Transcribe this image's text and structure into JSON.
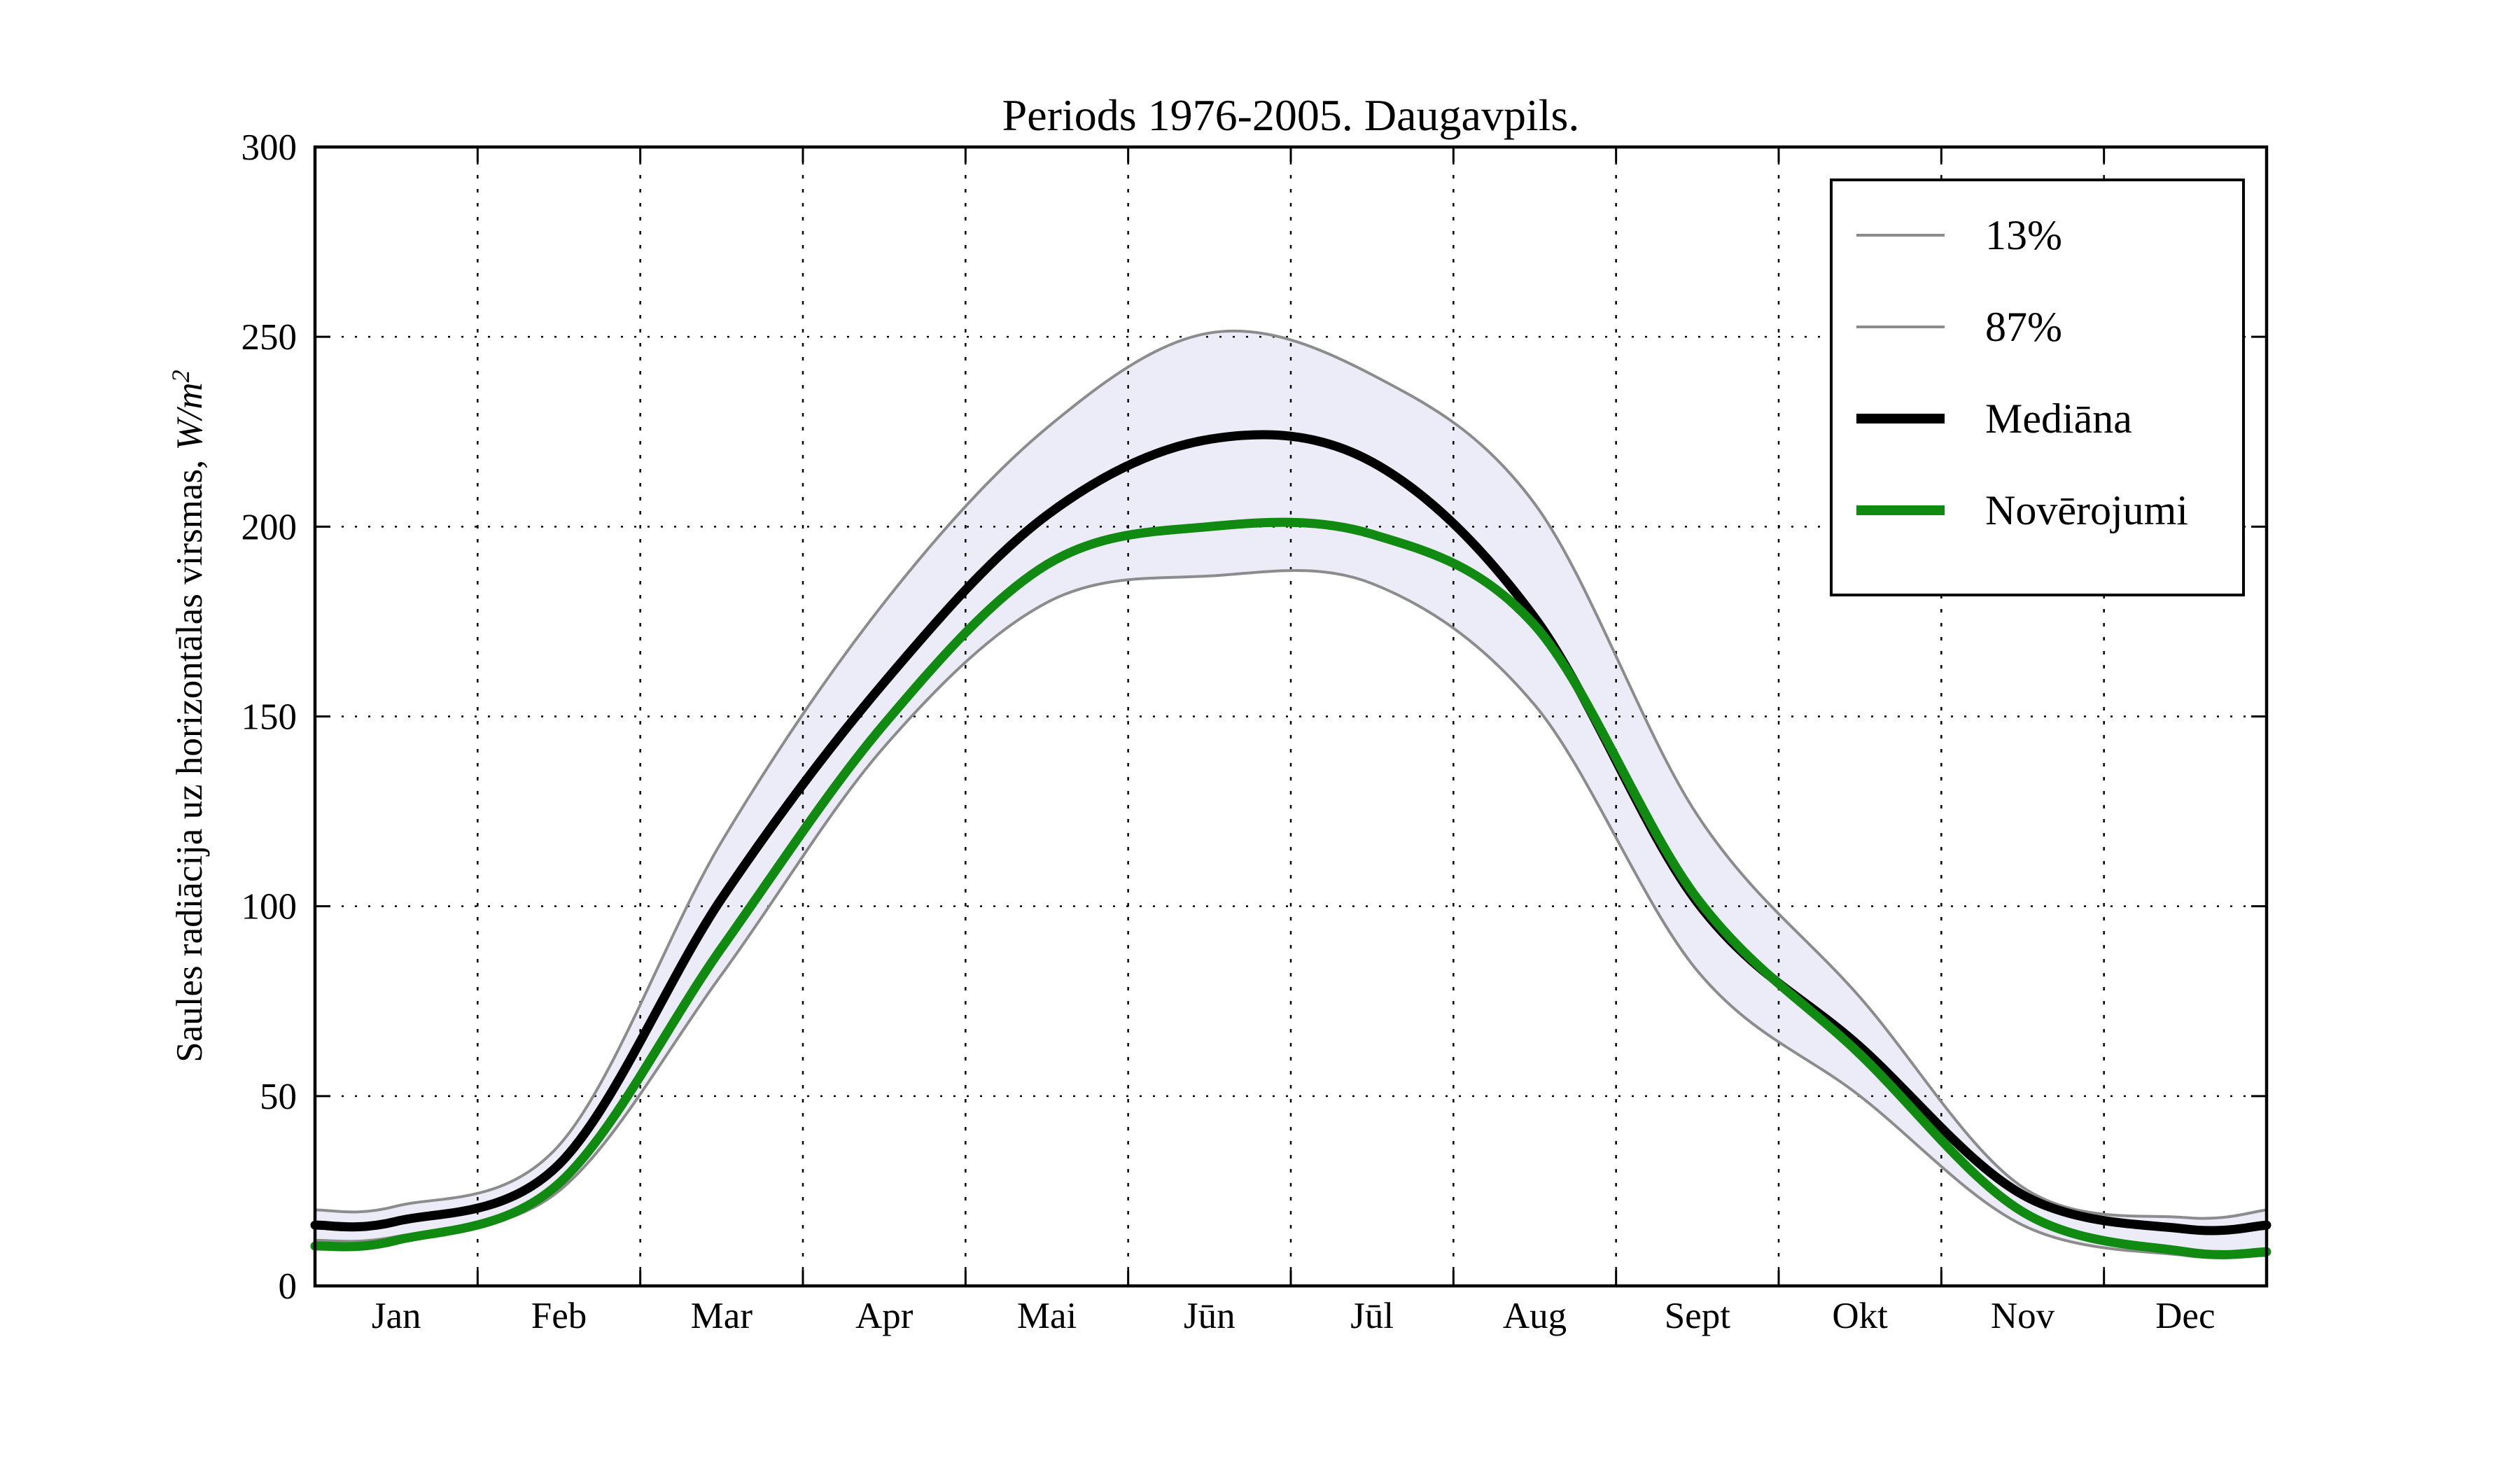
{
  "chart_data": {
    "type": "line",
    "title": "Periods 1976-2005. Daugavpils.",
    "ylabel": "Saules radiācija uz horizontālas virsmas, W/m²",
    "ylabel_parts": {
      "text": "Saules radiācija uz horizontālas virsmas, ",
      "math": "W/m",
      "sup": "2"
    },
    "xlabel": "",
    "ylim": [
      0,
      300
    ],
    "yticks": [
      0,
      50,
      100,
      150,
      200,
      250,
      300
    ],
    "categories": [
      "Jan",
      "Feb",
      "Mar",
      "Apr",
      "Mai",
      "Jūn",
      "Jūl",
      "Aug",
      "Sept",
      "Okt",
      "Nov",
      "Dec"
    ],
    "grid": true,
    "legend_position": "upper right",
    "band": {
      "lower": "13%",
      "upper": "87%",
      "fill": "#ECECF8"
    },
    "colors": {
      "percentile_line": "#8C8C8C",
      "median_line": "#000000",
      "observations_line": "#108A10",
      "band_fill": "#ECECF8",
      "axis": "#000000"
    },
    "series": [
      {
        "name": "13%",
        "role": "percentile-lower",
        "color": "#8C8C8C",
        "line_width": "thin",
        "edge_left": 12,
        "values": [
          13,
          25,
          82,
          142,
          180,
          187,
          185,
          153,
          83,
          50,
          16,
          8
        ],
        "edge_right": 8
      },
      {
        "name": "87%",
        "role": "percentile-upper",
        "color": "#8C8C8C",
        "line_width": "thin",
        "edge_left": 20,
        "values": [
          21,
          37,
          117,
          180,
          226,
          251,
          240,
          206,
          124,
          76,
          26,
          18
        ],
        "edge_right": 20
      },
      {
        "name": "Mediāna",
        "role": "median",
        "color": "#000000",
        "line_width": "thick",
        "edge_left": 16,
        "values": [
          17,
          32,
          102,
          159,
          203,
          223,
          217,
          176,
          101,
          63,
          24,
          15
        ],
        "edge_right": 16
      },
      {
        "name": "Novērojumi",
        "role": "observations",
        "color": "#108A10",
        "line_width": "thick",
        "edge_left": 10.5,
        "values": [
          12,
          27,
          89,
          148,
          190,
          200,
          198,
          174,
          102,
          61,
          19.5,
          9
        ],
        "edge_right": 9
      }
    ]
  }
}
